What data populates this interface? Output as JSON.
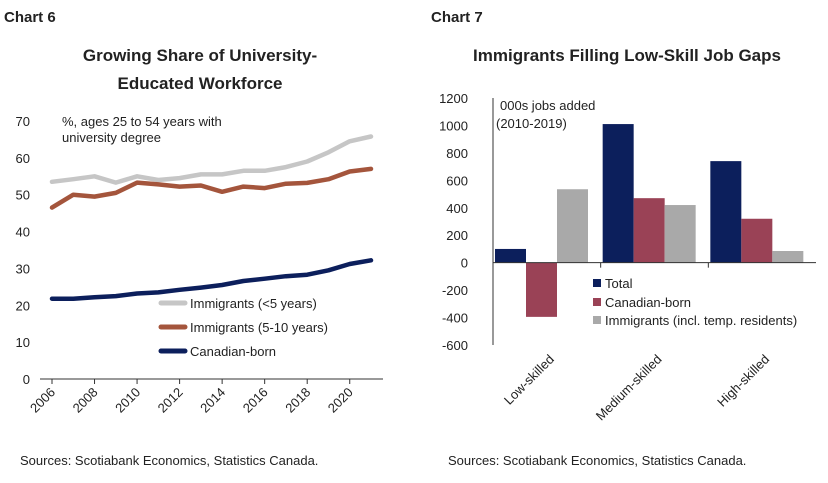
{
  "chart_data": [
    {
      "type": "line",
      "chart_label": "Chart 6",
      "title_lines": [
        "Growing Share of University-",
        "Educated Workforce"
      ],
      "annotation_lines": [
        "%, ages 25 to 54 years with",
        "university degree"
      ],
      "x": [
        2006,
        2007,
        2008,
        2009,
        2010,
        2011,
        2012,
        2013,
        2014,
        2015,
        2016,
        2017,
        2018,
        2019,
        2020,
        2021
      ],
      "x_tick_labels": [
        "2006",
        "2008",
        "2010",
        "2012",
        "2014",
        "2016",
        "2018",
        "2020"
      ],
      "x_ticks": [
        2006,
        2008,
        2010,
        2012,
        2014,
        2016,
        2018,
        2020
      ],
      "y_ticks": [
        0,
        10,
        20,
        30,
        40,
        50,
        60,
        70
      ],
      "ylim": [
        0,
        70
      ],
      "series": [
        {
          "name": "Immigrants (<5 years)",
          "color": "#c6c6c6",
          "values": [
            53.5,
            54.2,
            55.0,
            53.3,
            55.0,
            54.0,
            54.5,
            55.5,
            55.5,
            56.5,
            56.5,
            57.5,
            59.0,
            61.5,
            64.5,
            65.8
          ]
        },
        {
          "name": "Immigrants (5-10 years)",
          "color": "#a4553c",
          "values": [
            46.5,
            50.0,
            49.5,
            50.5,
            53.3,
            52.8,
            52.2,
            52.5,
            50.8,
            52.2,
            51.8,
            53.0,
            53.2,
            54.2,
            56.3,
            57.0
          ]
        },
        {
          "name": "Canadian-born",
          "color": "#0c1f5c",
          "values": [
            21.8,
            21.8,
            22.2,
            22.5,
            23.2,
            23.5,
            24.2,
            24.8,
            25.5,
            26.6,
            27.2,
            27.9,
            28.3,
            29.5,
            31.2,
            32.2
          ]
        }
      ],
      "source": "Sources: Scotiabank Economics, Statistics Canada."
    },
    {
      "type": "bar",
      "chart_label": "Chart 7",
      "title": "Immigrants Filling Low-Skill Job Gaps",
      "annotation_lines": [
        "000s jobs added",
        "(2010-2019)"
      ],
      "categories": [
        "Low-skilled",
        "Medium-skilled",
        "High-skilled"
      ],
      "y_ticks": [
        -600,
        -400,
        -200,
        0,
        200,
        400,
        600,
        800,
        1000,
        1200
      ],
      "ylim": [
        -600,
        1200
      ],
      "series": [
        {
          "name": "Total",
          "color": "#0c1f5c",
          "values": [
            100,
            1010,
            740
          ]
        },
        {
          "name": "Canadian-born",
          "color": "#9a4256",
          "values": [
            -395,
            470,
            320
          ]
        },
        {
          "name": "Immigrants (incl. temp. residents)",
          "color": "#a9a9a9",
          "values": [
            535,
            420,
            85
          ]
        }
      ],
      "source": "Sources: Scotiabank Economics, Statistics Canada."
    }
  ]
}
